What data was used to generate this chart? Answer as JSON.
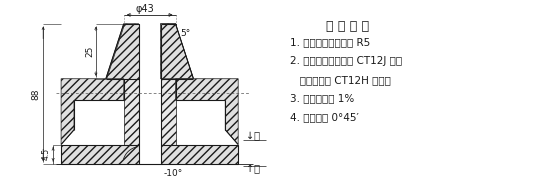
{
  "title": "技 术 条 件",
  "items": [
    "1. 未注明圆角半径为 R5",
    "2. 加工余量：顶面按 CT12J 级，",
    "   侧、底面按 CT12H 级确定",
    "3. 铸件收缩率 1%",
    "4. 起模斜度 0°45′"
  ],
  "bg_color": "#ffffff",
  "text_color": "#1a1a1a",
  "dim_phi43": "φ43",
  "dim_5deg": "5°",
  "dim_10deg": "-10°",
  "dim_88": "88",
  "dim_25": "25",
  "dim_45": "4.5",
  "hatch": "////",
  "lc": "#1a1a1a"
}
